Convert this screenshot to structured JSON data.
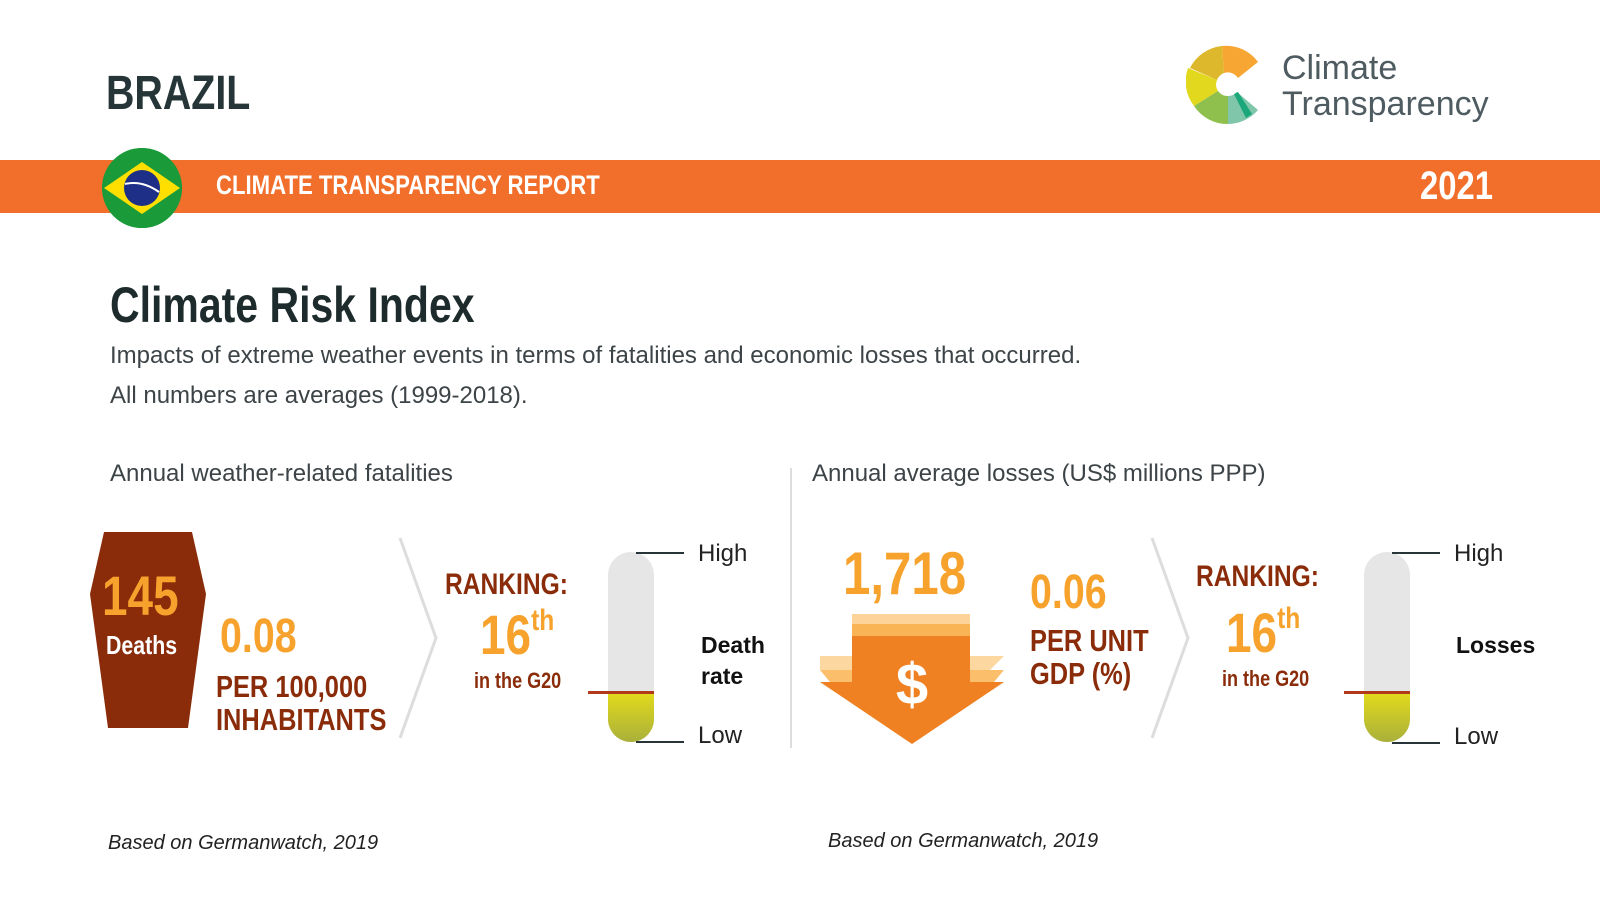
{
  "header": {
    "country": "BRAZIL",
    "report_title": "CLIMATE TRANSPARENCY REPORT",
    "year": "2021",
    "logo": {
      "line1": "Climate",
      "line2": "Transparency"
    },
    "flag_icon": "brazil-flag-icon",
    "accent_color": "#f26f2b"
  },
  "section": {
    "title": "Climate Risk Index",
    "description_1": "Impacts of extreme weather events in terms of fatalities and economic losses that occurred.",
    "description_2": "All numbers are averages (1999-2018)."
  },
  "fatalities": {
    "subtitle": "Annual weather-related fatalities",
    "deaths_value": "145",
    "deaths_label": "Deaths",
    "rate_value": "0.08",
    "rate_unit_1": "PER 100,000",
    "rate_unit_2": "INHABITANTS",
    "ranking_label": "RANKING:",
    "rank_number": "16",
    "rank_suffix": "th",
    "rank_context": "in the G20",
    "gauge": {
      "high": "High",
      "low": "Low",
      "name_1": "Death",
      "name_2": "rate",
      "level": 0.26
    },
    "source": "Based on Germanwatch, 2019"
  },
  "losses": {
    "subtitle": "Annual average losses (US$ millions PPP)",
    "value": "1,718",
    "currency_symbol": "$",
    "rate_value": "0.06",
    "rate_unit_1": "PER UNIT",
    "rate_unit_2": "GDP (%)",
    "ranking_label": "RANKING:",
    "rank_number": "16",
    "rank_suffix": "th",
    "rank_context": "in the G20",
    "gauge": {
      "high": "High",
      "low": "Low",
      "name_1": "Losses",
      "level": 0.26
    },
    "source": "Based on Germanwatch, 2019"
  }
}
